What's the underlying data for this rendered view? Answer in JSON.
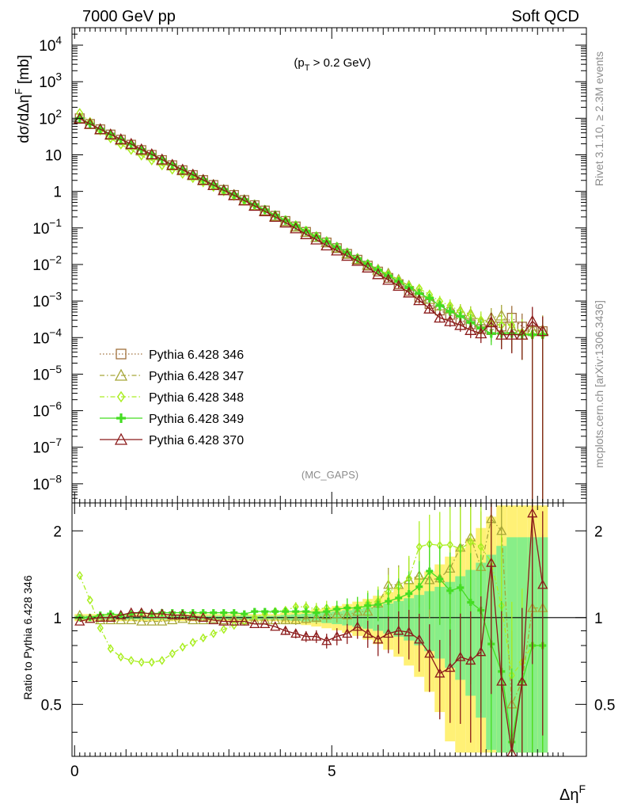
{
  "header": {
    "left": "7000 GeV pp",
    "right": "Soft QCD"
  },
  "annotation": {
    "cut": "(p_T > 0.2 GeV)",
    "analysis": "(MC_GAPS)",
    "rivet": "Rivet 3.1.10, ≥ 2.3M events",
    "source": "mcplots.cern.ch [arXiv:1306.3436]"
  },
  "axes": {
    "ylabel_top": "dσ/dΔη^F [mb]",
    "ylabel_bottom": "Ratio to Pythia 6.428 346",
    "xlabel": "Δη^F"
  },
  "colors": {
    "s346": "#a0703c",
    "s347": "#a6a637",
    "s348": "#aaee22",
    "s349": "#44dd22",
    "s370": "#8b1a1a",
    "band_yellow": "#fff176",
    "band_green": "#88ee88"
  },
  "chart_data": [
    {
      "type": "line",
      "title": "",
      "xlabel": "Δη^F",
      "ylabel": "dσ/dΔη^F [mb]",
      "xlim": [
        -0.05,
        9.95
      ],
      "ylim": [
        3e-09,
        30000.0
      ],
      "yscale": "log",
      "legend_position": "bottom-left",
      "x": [
        0.1,
        0.3,
        0.5,
        0.7,
        0.9,
        1.1,
        1.3,
        1.5,
        1.7,
        1.9,
        2.1,
        2.3,
        2.5,
        2.7,
        2.9,
        3.1,
        3.3,
        3.5,
        3.7,
        3.9,
        4.1,
        4.3,
        4.5,
        4.7,
        4.9,
        5.1,
        5.3,
        5.5,
        5.7,
        5.9,
        6.1,
        6.3,
        6.5,
        6.7,
        6.9,
        7.1,
        7.3,
        7.5,
        7.7,
        7.9,
        8.1,
        8.3,
        8.5,
        8.7,
        8.9,
        9.1
      ],
      "series": [
        {
          "name": "Pythia 6.428 346",
          "marker": "square-open",
          "dash": "dotted",
          "values": [
            100,
            70,
            50,
            36,
            26,
            19,
            13.5,
            10,
            7.2,
            5.2,
            3.8,
            2.8,
            2.05,
            1.5,
            1.1,
            0.8,
            0.58,
            0.42,
            0.3,
            0.215,
            0.155,
            0.11,
            0.078,
            0.056,
            0.04,
            0.028,
            0.0195,
            0.0135,
            0.0093,
            0.0064,
            0.0043,
            0.0029,
            0.0019,
            0.00125,
            0.00083,
            0.00055,
            0.00042,
            0.0003,
            0.00023,
            0.00017,
            0.00016,
            0.0002,
            0.00035,
            0.0002,
            0.00015,
            0.00015
          ]
        },
        {
          "name": "Pythia 6.428 347",
          "marker": "triangle-open",
          "dash": "dashdot",
          "values": [
            102,
            69,
            49,
            35,
            25,
            18.5,
            13,
            9.7,
            7,
            5.1,
            3.75,
            2.75,
            2.0,
            1.48,
            1.08,
            0.79,
            0.57,
            0.41,
            0.295,
            0.21,
            0.152,
            0.108,
            0.077,
            0.056,
            0.041,
            0.029,
            0.02,
            0.0142,
            0.0098,
            0.0072,
            0.0056,
            0.0038,
            0.0026,
            0.0017,
            0.00113,
            0.00075,
            0.00062,
            0.00053,
            0.00044,
            0.00026,
            0.00035,
            0.0004,
            0.00018,
            0.00012,
            0.00016,
            0.00016
          ]
        },
        {
          "name": "Pythia 6.428 348",
          "marker": "diamond",
          "dash": "dashdot",
          "values": [
            140,
            80,
            46,
            28,
            19,
            13.5,
            9.5,
            7,
            5.1,
            3.9,
            3.0,
            2.3,
            1.75,
            1.32,
            1.0,
            0.75,
            0.56,
            0.42,
            0.31,
            0.225,
            0.165,
            0.12,
            0.085,
            0.06,
            0.043,
            0.03,
            0.021,
            0.0146,
            0.0104,
            0.0073,
            0.0053,
            0.0037,
            0.0026,
            0.0022,
            0.0015,
            0.00098,
            0.00075,
            0.00052,
            0.00042,
            0.0003,
            0.00025,
            0.00022,
            0.00022,
            0.00014,
            0.00012,
            0.00012
          ]
        },
        {
          "name": "Pythia 6.428 349",
          "marker": "plus-bold",
          "dash": "solid",
          "values": [
            100,
            70,
            51,
            37,
            26.5,
            19.5,
            14,
            10.3,
            7.5,
            5.4,
            3.95,
            2.9,
            2.12,
            1.56,
            1.14,
            0.83,
            0.6,
            0.44,
            0.315,
            0.225,
            0.162,
            0.115,
            0.082,
            0.058,
            0.042,
            0.03,
            0.021,
            0.0146,
            0.0102,
            0.0071,
            0.0049,
            0.0034,
            0.0023,
            0.0016,
            0.0012,
            0.00075,
            0.00052,
            0.00038,
            0.00026,
            0.00018,
            0.00013,
            0.00013,
            0.00013,
            0.00012,
            0.00012,
            0.00012
          ]
        },
        {
          "name": "Pythia 6.428 370",
          "marker": "triangle-open",
          "dash": "solid",
          "values": [
            97,
            70,
            50,
            36,
            26.5,
            19.8,
            14,
            10.3,
            7.4,
            5.3,
            3.9,
            2.85,
            2.05,
            1.48,
            1.07,
            0.78,
            0.56,
            0.4,
            0.285,
            0.2,
            0.14,
            0.097,
            0.067,
            0.048,
            0.033,
            0.024,
            0.0172,
            0.0125,
            0.0082,
            0.0054,
            0.0038,
            0.0026,
            0.0017,
            0.00105,
            0.00062,
            0.00035,
            0.00028,
            0.00022,
            0.00016,
            0.00013,
            0.00026,
            0.00012,
            0.00012,
            0.00012,
            0.00028,
            0.00015
          ]
        }
      ]
    },
    {
      "type": "line",
      "title": "",
      "xlabel": "Δη^F",
      "ylabel": "Ratio to Pythia 6.428 346",
      "xlim": [
        -0.05,
        9.95
      ],
      "ylim": [
        0.33,
        2.5
      ],
      "yscale": "log",
      "x_ticks": [
        0,
        5
      ],
      "y_ticks": [
        0.5,
        1,
        2
      ],
      "x": [
        0.1,
        0.3,
        0.5,
        0.7,
        0.9,
        1.1,
        1.3,
        1.5,
        1.7,
        1.9,
        2.1,
        2.3,
        2.5,
        2.7,
        2.9,
        3.1,
        3.3,
        3.5,
        3.7,
        3.9,
        4.1,
        4.3,
        4.5,
        4.7,
        4.9,
        5.1,
        5.3,
        5.5,
        5.7,
        5.9,
        6.1,
        6.3,
        6.5,
        6.7,
        6.9,
        7.1,
        7.3,
        7.5,
        7.7,
        7.9,
        8.1,
        8.3,
        8.5,
        8.7,
        8.9,
        9.1
      ],
      "series": [
        {
          "name": "Pythia 6.428 347",
          "values": [
            1.02,
            0.99,
            0.98,
            0.98,
            0.98,
            0.98,
            0.97,
            0.97,
            0.97,
            0.98,
            0.99,
            0.98,
            0.98,
            0.99,
            0.98,
            0.99,
            0.98,
            0.98,
            0.98,
            0.98,
            0.98,
            0.98,
            0.99,
            1.0,
            1.02,
            1.03,
            1.02,
            1.05,
            1.05,
            1.12,
            1.3,
            1.3,
            1.35,
            1.4,
            1.35,
            1.37,
            1.48,
            1.75,
            1.9,
            1.5,
            2.2,
            2.0,
            0.5,
            0.6,
            1.08,
            1.08
          ]
        },
        {
          "name": "Pythia 6.428 348",
          "values": [
            1.4,
            1.15,
            0.92,
            0.78,
            0.73,
            0.71,
            0.7,
            0.7,
            0.71,
            0.75,
            0.79,
            0.82,
            0.85,
            0.88,
            0.91,
            0.94,
            0.97,
            1.0,
            1.03,
            1.05,
            1.06,
            1.09,
            1.09,
            1.07,
            1.08,
            1.07,
            1.08,
            1.08,
            1.12,
            1.14,
            1.23,
            1.28,
            1.37,
            1.76,
            1.8,
            1.78,
            1.79,
            1.73,
            1.83,
            1.76,
            1.56,
            1.1,
            0.63,
            0.7,
            0.8,
            0.8
          ]
        },
        {
          "name": "Pythia 6.428 349",
          "values": [
            1.0,
            1.0,
            1.02,
            1.03,
            1.02,
            1.03,
            1.04,
            1.03,
            1.04,
            1.04,
            1.04,
            1.04,
            1.04,
            1.04,
            1.04,
            1.04,
            1.03,
            1.05,
            1.05,
            1.05,
            1.05,
            1.05,
            1.05,
            1.04,
            1.05,
            1.07,
            1.08,
            1.08,
            1.1,
            1.11,
            1.14,
            1.17,
            1.21,
            1.28,
            1.45,
            1.36,
            1.24,
            1.27,
            1.13,
            1.06,
            0.81,
            0.65,
            0.37,
            0.6,
            0.8,
            0.8
          ]
        },
        {
          "name": "Pythia 6.428 370",
          "values": [
            0.97,
            0.99,
            1.0,
            1.0,
            1.02,
            1.04,
            1.04,
            1.03,
            1.03,
            1.02,
            1.02,
            1.01,
            1.0,
            0.98,
            0.97,
            0.97,
            0.97,
            0.95,
            0.95,
            0.93,
            0.9,
            0.88,
            0.86,
            0.86,
            0.83,
            0.86,
            0.88,
            0.93,
            0.88,
            0.84,
            0.88,
            0.9,
            0.89,
            0.84,
            0.75,
            0.64,
            0.67,
            0.73,
            0.71,
            0.76,
            1.55,
            0.6,
            0.34,
            0.6,
            2.3,
            1.3
          ]
        }
      ]
    }
  ]
}
